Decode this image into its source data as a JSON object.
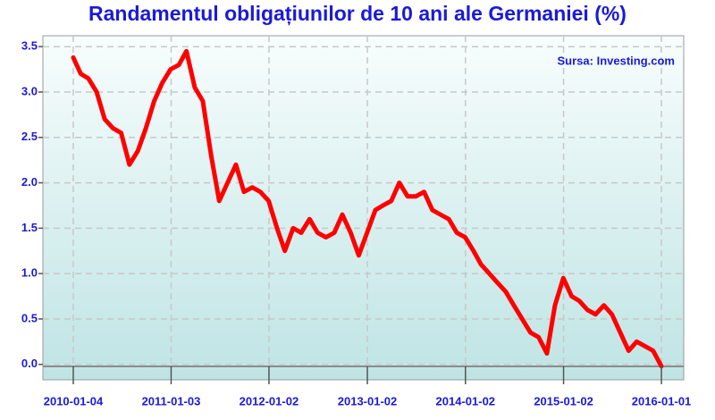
{
  "chart_data": {
    "type": "line",
    "title": "Randamentul obligațiunilor de 10 ani ale Germaniei (%)",
    "annotation": "Sursa: Investing.com",
    "color": "#ff0000",
    "grid": true,
    "x": [
      "2010-01-04",
      "2010-02-01",
      "2010-03-01",
      "2010-04-01",
      "2010-05-01",
      "2010-06-01",
      "2010-07-01",
      "2010-08-01",
      "2010-09-01",
      "2010-10-01",
      "2010-11-01",
      "2010-12-01",
      "2011-01-01",
      "2011-02-01",
      "2011-03-01",
      "2011-04-01",
      "2011-05-01",
      "2011-06-01",
      "2011-07-01",
      "2011-08-01",
      "2011-09-01",
      "2011-10-01",
      "2011-11-01",
      "2011-12-01",
      "2012-01-01",
      "2012-02-01",
      "2012-03-01",
      "2012-04-01",
      "2012-05-01",
      "2012-06-01",
      "2012-07-01",
      "2012-08-01",
      "2012-09-01",
      "2012-10-01",
      "2012-11-01",
      "2012-12-01",
      "2013-01-01",
      "2013-02-01",
      "2013-03-01",
      "2013-04-01",
      "2013-05-01",
      "2013-06-01",
      "2013-07-01",
      "2013-08-01",
      "2013-09-01",
      "2013-10-01",
      "2013-11-01",
      "2013-12-01",
      "2014-01-01",
      "2014-02-01",
      "2014-03-01",
      "2014-04-01",
      "2014-05-01",
      "2014-06-01",
      "2014-07-01",
      "2014-08-01",
      "2014-09-01",
      "2014-10-01",
      "2014-11-01",
      "2014-12-01",
      "2015-01-01",
      "2015-02-01",
      "2015-03-01",
      "2015-04-01",
      "2015-05-01",
      "2015-06-01",
      "2015-07-01",
      "2015-08-01",
      "2015-09-01",
      "2015-10-01",
      "2015-11-01",
      "2015-12-01",
      "2016-01-01"
    ],
    "values": [
      3.38,
      3.2,
      3.15,
      3.0,
      2.7,
      2.6,
      2.55,
      2.2,
      2.35,
      2.6,
      2.9,
      3.1,
      3.25,
      3.3,
      3.45,
      3.05,
      2.9,
      2.3,
      1.8,
      2.0,
      2.2,
      1.9,
      1.95,
      1.9,
      1.8,
      1.5,
      1.25,
      1.5,
      1.45,
      1.6,
      1.45,
      1.4,
      1.45,
      1.65,
      1.45,
      1.2,
      1.45,
      1.7,
      1.75,
      1.8,
      2.0,
      1.85,
      1.85,
      1.9,
      1.7,
      1.65,
      1.6,
      1.45,
      1.4,
      1.25,
      1.1,
      1.0,
      0.9,
      0.8,
      0.65,
      0.5,
      0.35,
      0.3,
      0.12,
      0.65,
      0.95,
      0.75,
      0.7,
      0.6,
      0.55,
      0.65,
      0.55,
      0.35,
      0.15,
      0.25,
      0.2,
      0.15,
      -0.02
    ],
    "xlim": [
      "2009-09-13",
      "2016-03-24"
    ],
    "xticks": [
      "2010-01-04",
      "2011-01-03",
      "2012-01-02",
      "2013-01-02",
      "2014-01-02",
      "2015-01-02",
      "2016-01-01"
    ],
    "ylim": [
      -0.17,
      3.62
    ],
    "yticks": [
      {
        "value": 0,
        "label": "0.0"
      },
      0.5,
      {
        "value": 1,
        "label": "1.0"
      },
      1.5,
      {
        "value": 2,
        "label": "2.0"
      },
      2.5,
      {
        "value": 3,
        "label": "3.0"
      },
      3.5
    ]
  }
}
